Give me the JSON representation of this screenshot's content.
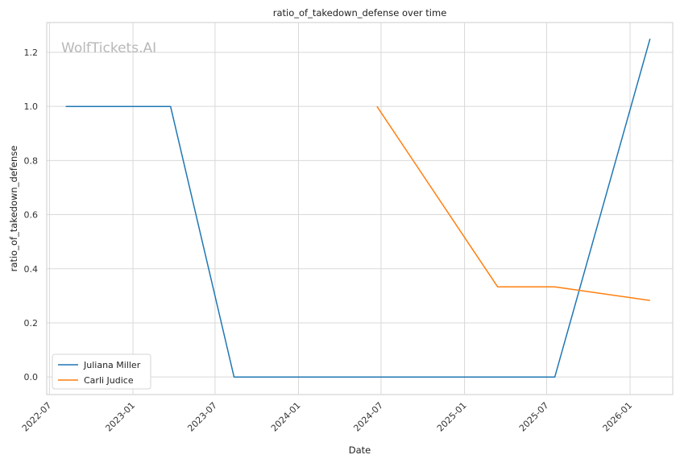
{
  "chart_data": {
    "type": "line",
    "title": "ratio_of_takedown_defense over time",
    "xlabel": "Date",
    "ylabel": "ratio_of_takedown_defense",
    "watermark": "WolfTickets.AI",
    "x_ticks": [
      "2022-07",
      "2023-01",
      "2023-07",
      "2024-01",
      "2024-07",
      "2025-01",
      "2025-07",
      "2026-01"
    ],
    "y_ticks": [
      "0.0",
      "0.2",
      "0.4",
      "0.6",
      "0.8",
      "1.0",
      "1.2"
    ],
    "xlim": [
      "2022-06-25",
      "2026-04-05"
    ],
    "ylim": [
      -0.065,
      1.31
    ],
    "grid": true,
    "legend_position": "lower-left",
    "series": [
      {
        "name": "Juliana Miller",
        "color": "#1f77b4",
        "x": [
          "2022-08-06",
          "2023-03-25",
          "2023-08-12",
          "2025-07-19",
          "2026-02-14"
        ],
        "y": [
          1.0,
          1.0,
          0.0,
          0.0,
          1.25
        ]
      },
      {
        "name": "Carli Judice",
        "color": "#ff7f0e",
        "x": [
          "2024-06-22",
          "2025-03-15",
          "2025-07-19",
          "2026-02-14"
        ],
        "y": [
          1.0,
          0.333,
          0.333,
          0.283
        ]
      }
    ]
  }
}
